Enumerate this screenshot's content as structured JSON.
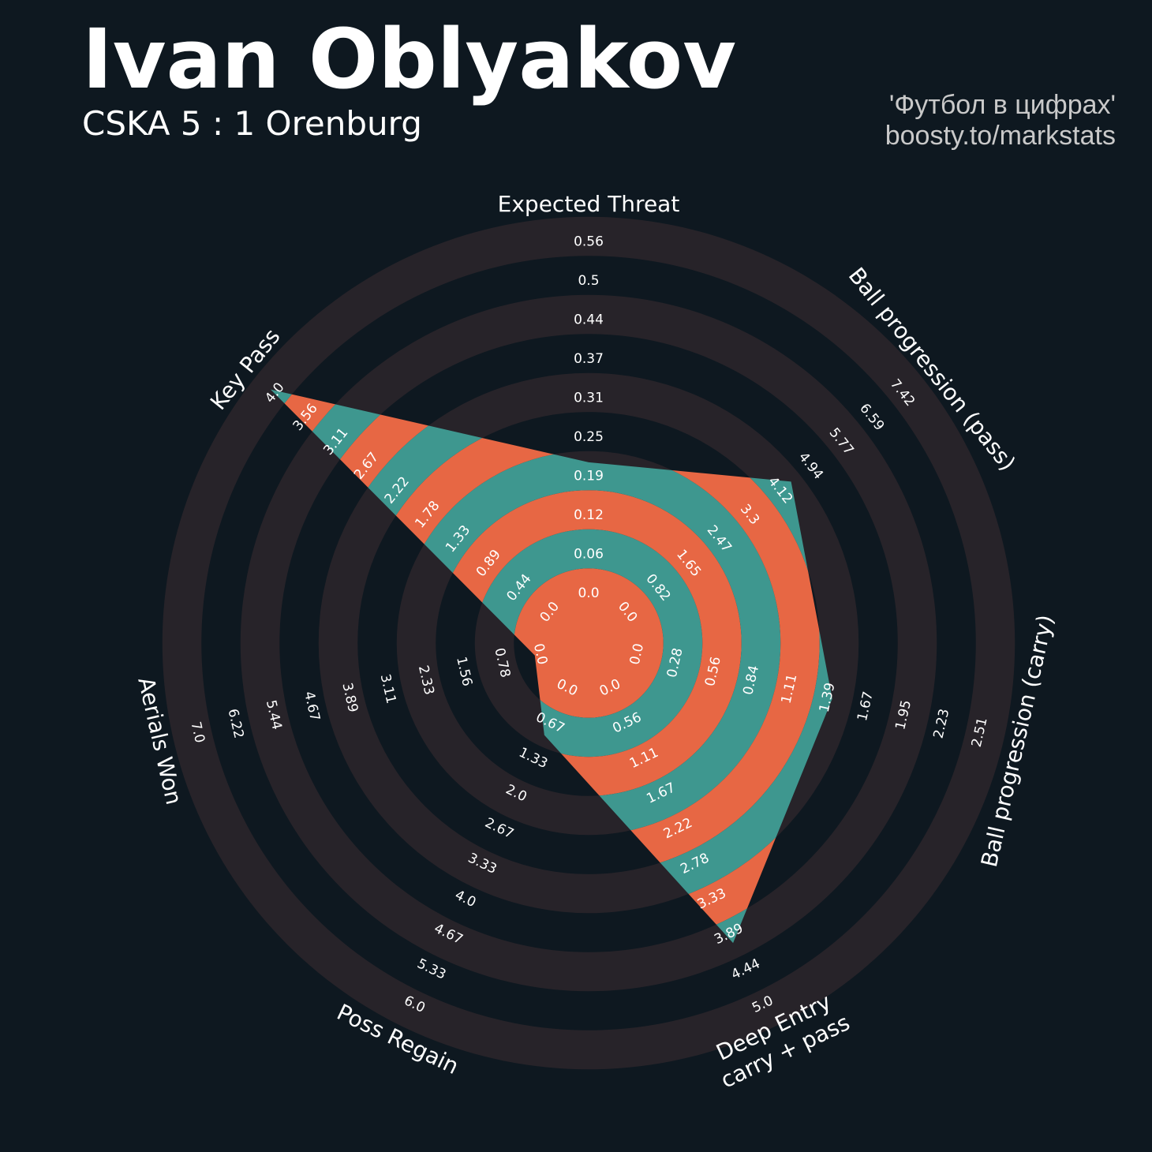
{
  "header": {
    "title": "Ivan Oblyakov",
    "subtitle": "CSKA 5 : 1 Orenburg",
    "credit_line1": "'Футбол в цифрах'",
    "credit_line2": "boosty.to/markstats"
  },
  "colors": {
    "background": "#0e1820",
    "ring_band": "#272329",
    "fill_teal": "#3e978f",
    "fill_orange": "#e76744",
    "text": "#ffffff"
  },
  "chart_data": {
    "type": "radar",
    "params": [
      {
        "label": "Expected Threat",
        "min": 0.0,
        "max": 0.56,
        "ticks": [
          "0.0",
          "0.06",
          "0.12",
          "0.19",
          "0.25",
          "0.31",
          "0.37",
          "0.44",
          "0.5",
          "0.56"
        ]
      },
      {
        "label": "Ball progression (pass)",
        "min": 0.0,
        "max": 7.42,
        "ticks": [
          "0.0",
          "0.82",
          "1.65",
          "2.47",
          "3.3",
          "4.12",
          "4.94",
          "5.77",
          "6.59",
          "7.42"
        ]
      },
      {
        "label": "Ball progression (carry)",
        "min": 0.0,
        "max": 2.51,
        "ticks": [
          "0.0",
          "0.28",
          "0.56",
          "0.84",
          "1.11",
          "1.39",
          "1.67",
          "1.95",
          "2.23",
          "2.51"
        ]
      },
      {
        "label": "Deep Entry\ncarry + pass",
        "min": 0.0,
        "max": 5.0,
        "ticks": [
          "0.0",
          "0.56",
          "1.11",
          "1.67",
          "2.22",
          "2.78",
          "3.33",
          "3.89",
          "4.44",
          "5.0"
        ]
      },
      {
        "label": "Poss Regain",
        "min": 0.0,
        "max": 6.0,
        "ticks": [
          "0.0",
          "0.67",
          "1.33",
          "2.0",
          "2.67",
          "3.33",
          "4.0",
          "4.67",
          "5.33",
          "6.0"
        ]
      },
      {
        "label": "Aerials Won",
        "min": 0.0,
        "max": 7.0,
        "ticks": [
          "0.0",
          "0.78",
          "1.56",
          "2.33",
          "3.11",
          "3.89",
          "4.67",
          "5.44",
          "6.22",
          "7.0"
        ]
      },
      {
        "label": "Key Pass",
        "min": 0.0,
        "max": 4.0,
        "ticks": [
          "0.0",
          "0.44",
          "0.89",
          "1.33",
          "1.78",
          "2.22",
          "2.67",
          "3.11",
          "3.56",
          "4.0"
        ]
      }
    ],
    "values": [
      0.2,
      4.3,
      1.39,
      3.95,
      0.8,
      0.0,
      4.0
    ]
  }
}
